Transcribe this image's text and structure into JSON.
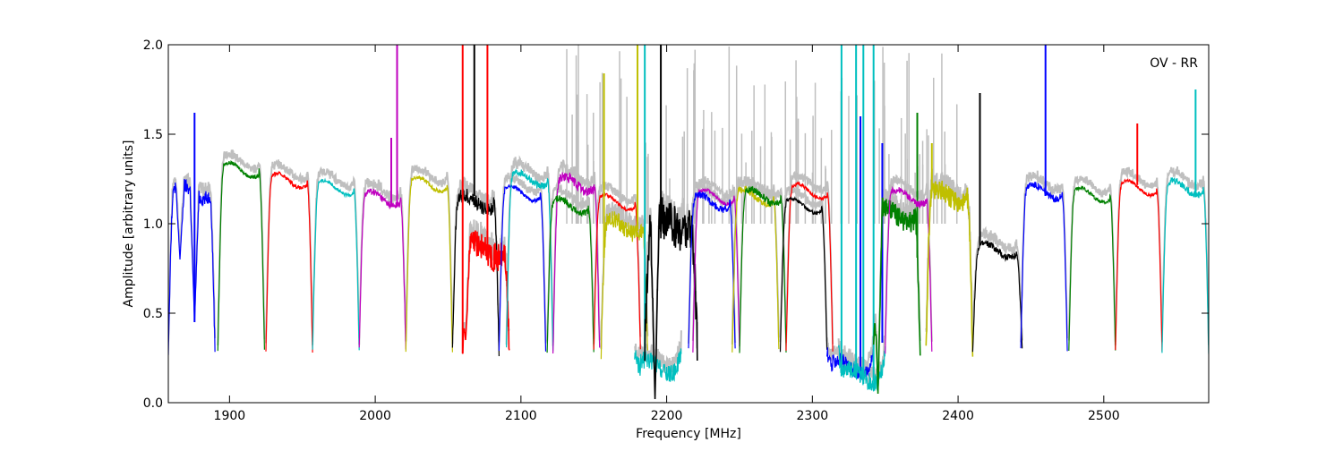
{
  "chart_data": {
    "type": "line",
    "title": "",
    "annotation": "OV - RR",
    "xlabel": "Frequency [MHz]",
    "ylabel": "Amplitude [arbitrary units]",
    "xlim": [
      1858,
      2572
    ],
    "ylim": [
      0.0,
      2.0
    ],
    "xticks": [
      1900,
      2000,
      2100,
      2200,
      2300,
      2400,
      2500
    ],
    "yticks": [
      0.0,
      0.5,
      1.0,
      1.5,
      2.0
    ],
    "xtick_labels": [
      "1900",
      "2000",
      "2100",
      "2200",
      "2300",
      "2400",
      "2500"
    ],
    "ytick_labels": [
      "0.0",
      "0.5",
      "1.0",
      "1.5",
      "2.0"
    ],
    "background_series_color": "#bfbfbf",
    "band_colors": [
      "#0000ff",
      "#008000",
      "#ff0000",
      "#00bfbf",
      "#bf00bf",
      "#bfbf00",
      "#000000"
    ],
    "bands": [
      {
        "start": 1858,
        "end": 1890,
        "color": "#0000ff",
        "level": 1.18,
        "noise": 0.04,
        "dips": [
          [
            1866,
            0.8
          ],
          [
            1876,
            0.45
          ]
        ],
        "spikes": [
          [
            1876,
            1.62
          ]
        ]
      },
      {
        "start": 1892,
        "end": 1924,
        "color": "#008000",
        "level": 1.3,
        "noise": 0.01,
        "dips": [],
        "spikes": []
      },
      {
        "start": 1925,
        "end": 1957,
        "color": "#ff0000",
        "level": 1.24,
        "noise": 0.01,
        "dips": [],
        "spikes": []
      },
      {
        "start": 1957,
        "end": 1989,
        "color": "#00bfbf",
        "level": 1.2,
        "noise": 0.01,
        "dips": [],
        "spikes": []
      },
      {
        "start": 1989,
        "end": 2021,
        "color": "#bf00bf",
        "level": 1.14,
        "noise": 0.02,
        "dips": [],
        "spikes": [
          [
            2015,
            2.0
          ],
          [
            2011,
            1.48
          ]
        ]
      },
      {
        "start": 2021,
        "end": 2053,
        "color": "#bfbf00",
        "level": 1.22,
        "noise": 0.01,
        "dips": [],
        "spikes": []
      },
      {
        "start": 2053,
        "end": 2085,
        "color": "#000000",
        "level": 1.12,
        "noise": 0.04,
        "dips": [],
        "spikes": [
          [
            2068,
            2.0
          ]
        ]
      },
      {
        "start": 2060,
        "end": 2092,
        "color": "#ff0000",
        "level": 0.85,
        "noise": 0.08,
        "dips": [
          [
            2062,
            0.35
          ]
        ],
        "spikes": [
          [
            2060,
            2.0
          ],
          [
            2077,
            2.0
          ]
        ]
      },
      {
        "start": 2085,
        "end": 2117,
        "color": "#0000ff",
        "level": 1.17,
        "noise": 0.01,
        "dips": [],
        "spikes": []
      },
      {
        "start": 2090,
        "end": 2122,
        "color": "#00bfbf",
        "level": 1.25,
        "noise": 0.02,
        "dips": [],
        "spikes": []
      },
      {
        "start": 2122,
        "end": 2154,
        "color": "#bf00bf",
        "level": 1.22,
        "noise": 0.03,
        "dips": [],
        "spikes": []
      },
      {
        "start": 2118,
        "end": 2150,
        "color": "#008000",
        "level": 1.1,
        "noise": 0.02,
        "dips": [],
        "spikes": []
      },
      {
        "start": 2150,
        "end": 2182,
        "color": "#ff0000",
        "level": 1.12,
        "noise": 0.01,
        "dips": [],
        "spikes": []
      },
      {
        "start": 2155,
        "end": 2187,
        "color": "#bfbf00",
        "level": 0.98,
        "noise": 0.05,
        "dips": [],
        "spikes": [
          [
            2180,
            2.0
          ],
          [
            2157,
            1.84
          ]
        ]
      },
      {
        "start": 2178,
        "end": 2210,
        "color": "#00bfbf",
        "level": 0.2,
        "noise": 0.05,
        "dips": [],
        "spikes": [
          [
            2185,
            2.0
          ]
        ]
      },
      {
        "start": 2185,
        "end": 2221,
        "color": "#000000",
        "level": 1.0,
        "noise": 0.12,
        "dips": [
          [
            2192,
            0.02
          ]
        ],
        "spikes": [
          [
            2196,
            2.0
          ]
        ]
      },
      {
        "start": 2218,
        "end": 2250,
        "color": "#bf00bf",
        "level": 1.15,
        "noise": 0.01,
        "dips": [],
        "spikes": []
      },
      {
        "start": 2215,
        "end": 2247,
        "color": "#0000ff",
        "level": 1.12,
        "noise": 0.02,
        "dips": [],
        "spikes": []
      },
      {
        "start": 2245,
        "end": 2277,
        "color": "#bfbf00",
        "level": 1.15,
        "noise": 0.02,
        "dips": [],
        "spikes": []
      },
      {
        "start": 2250,
        "end": 2282,
        "color": "#008000",
        "level": 1.15,
        "noise": 0.02,
        "dips": [],
        "spikes": []
      },
      {
        "start": 2282,
        "end": 2314,
        "color": "#ff0000",
        "level": 1.18,
        "noise": 0.01,
        "dips": [],
        "spikes": []
      },
      {
        "start": 2278,
        "end": 2310,
        "color": "#000000",
        "level": 1.1,
        "noise": 0.01,
        "dips": [],
        "spikes": []
      },
      {
        "start": 2310,
        "end": 2342,
        "color": "#0000ff",
        "level": 0.2,
        "noise": 0.04,
        "dips": [],
        "spikes": [
          [
            2333,
            1.6
          ],
          [
            2348,
            1.45
          ]
        ]
      },
      {
        "start": 2318,
        "end": 2350,
        "color": "#00bfbf",
        "level": 0.15,
        "noise": 0.05,
        "dips": [],
        "spikes": [
          [
            2320,
            2.0
          ],
          [
            2330,
            2.0
          ],
          [
            2335,
            2.0
          ],
          [
            2342,
            2.0
          ]
        ]
      },
      {
        "start": 2342,
        "end": 2374,
        "color": "#008000",
        "level": 1.05,
        "noise": 0.06,
        "dips": [
          [
            2345,
            0.05
          ]
        ],
        "spikes": [
          [
            2372,
            1.62
          ]
        ]
      },
      {
        "start": 2350,
        "end": 2382,
        "color": "#bf00bf",
        "level": 1.15,
        "noise": 0.02,
        "dips": [],
        "spikes": []
      },
      {
        "start": 2378,
        "end": 2410,
        "color": "#bfbf00",
        "level": 1.15,
        "noise": 0.06,
        "dips": [],
        "spikes": [
          [
            2382,
            1.45
          ]
        ]
      },
      {
        "start": 2410,
        "end": 2444,
        "color": "#000000",
        "level": 0.85,
        "noise": 0.02,
        "dips": [],
        "spikes": [
          [
            2415,
            1.73
          ]
        ]
      },
      {
        "start": 2443,
        "end": 2475,
        "color": "#0000ff",
        "level": 1.18,
        "noise": 0.02,
        "dips": [],
        "spikes": [
          [
            2460,
            2.0
          ]
        ]
      },
      {
        "start": 2476,
        "end": 2508,
        "color": "#008000",
        "level": 1.16,
        "noise": 0.01,
        "dips": [],
        "spikes": []
      },
      {
        "start": 2508,
        "end": 2540,
        "color": "#ff0000",
        "level": 1.2,
        "noise": 0.01,
        "dips": [],
        "spikes": [
          [
            2523,
            1.56
          ]
        ]
      },
      {
        "start": 2540,
        "end": 2572,
        "color": "#00bfbf",
        "level": 1.2,
        "noise": 0.02,
        "dips": [],
        "spikes": [
          [
            2563,
            1.75
          ]
        ]
      }
    ],
    "grid": false,
    "legend": "none"
  }
}
